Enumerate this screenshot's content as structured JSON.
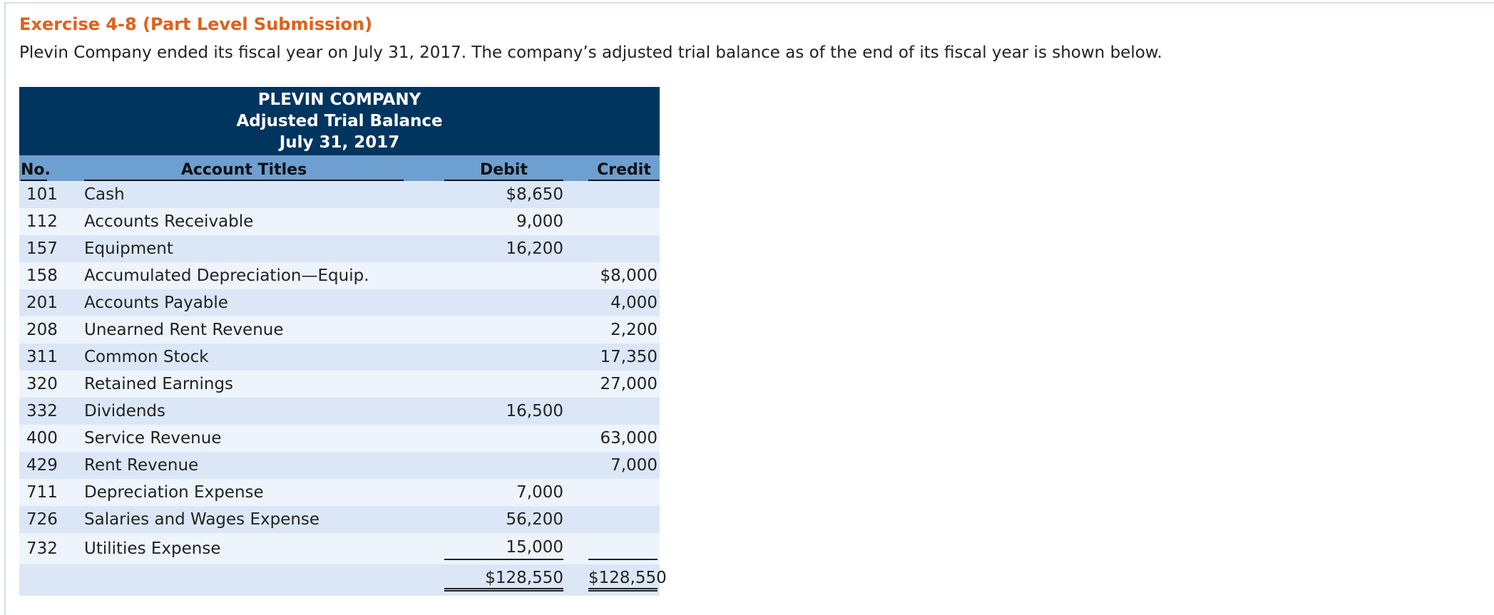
{
  "header": {
    "title": "Exercise 4-8 (Part Level Submission)",
    "intro": "Plevin Company ended its fiscal year on July 31, 2017. The company’s adjusted trial balance as of the end of its fiscal year is shown below."
  },
  "table": {
    "company": "PLEVIN COMPANY",
    "statement": "Adjusted Trial Balance",
    "date": "July 31, 2017",
    "columns": [
      "No.",
      "Account Titles",
      "Debit",
      "Credit"
    ],
    "rows": [
      {
        "no": "101",
        "account": "Cash",
        "debit": "$8,650"
      },
      {
        "no": "112",
        "account": "Accounts Receivable",
        "debit": "9,000"
      },
      {
        "no": "157",
        "account": "Equipment",
        "debit": "16,200"
      },
      {
        "no": "158",
        "account": "Accumulated Depreciation—Equip.",
        "credit": "$8,000"
      },
      {
        "no": "201",
        "account": "Accounts Payable",
        "credit": "4,000"
      },
      {
        "no": "208",
        "account": "Unearned Rent Revenue",
        "credit": "2,200"
      },
      {
        "no": "311",
        "account": "Common Stock",
        "credit": "17,350"
      },
      {
        "no": "320",
        "account": "Retained Earnings",
        "credit": "27,000"
      },
      {
        "no": "332",
        "account": "Dividends",
        "debit": "16,500"
      },
      {
        "no": "400",
        "account": "Service Revenue",
        "credit": "63,000"
      },
      {
        "no": "429",
        "account": "Rent Revenue",
        "credit": "7,000"
      },
      {
        "no": "711",
        "account": "Depreciation Expense",
        "debit": "7,000"
      },
      {
        "no": "726",
        "account": "Salaries and Wages Expense",
        "debit": "56,200"
      },
      {
        "no": "732",
        "account": "Utilities Expense",
        "debit": "15,000"
      }
    ],
    "totals": {
      "debit": "$128,550",
      "credit": "$128,550"
    }
  }
}
